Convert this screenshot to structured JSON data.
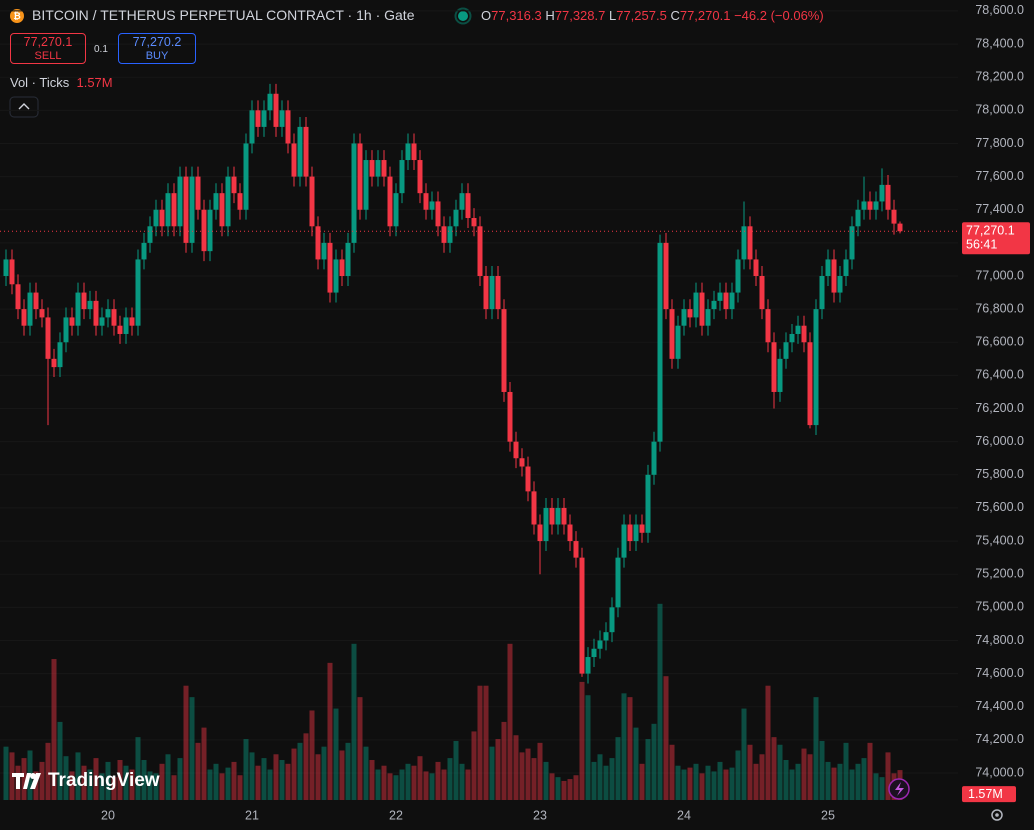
{
  "chart_data": {
    "type": "candlestick",
    "title": "BITCOIN / TETHERUS PERPETUAL CONTRACT · 1h · Gate",
    "legend_values": [
      {
        "key": "O",
        "value": "77,316.3"
      },
      {
        "key": "H",
        "value": "77,328.7"
      },
      {
        "key": "L",
        "value": "77,257.5"
      },
      {
        "key": "C",
        "value": "77,270.1"
      }
    ],
    "change": "−46.2 (−0.06%)",
    "sell": {
      "price": "77,270.1",
      "label": "SELL"
    },
    "spread": "0.1",
    "buy": {
      "price": "77,270.2",
      "label": "BUY"
    },
    "volume_indicator": {
      "name": "Vol · Ticks",
      "value": "1.57M"
    },
    "brand": "TradingView",
    "last_price": {
      "value": 77270.1,
      "label": "77,270.1"
    },
    "countdown": "56:41",
    "volume_label": "1.57M",
    "up_color": "#089981",
    "down_color": "#f23645",
    "grid": true,
    "categories": [
      null,
      null,
      null,
      null,
      null,
      null,
      null,
      null,
      null,
      null,
      null,
      null,
      null,
      null,
      null,
      null,
      null,
      "20",
      null,
      null,
      null,
      null,
      null,
      null,
      null,
      null,
      null,
      null,
      null,
      null,
      null,
      null,
      null,
      null,
      null,
      null,
      null,
      null,
      null,
      null,
      null,
      "21",
      null,
      null,
      null,
      null,
      null,
      null,
      null,
      null,
      null,
      null,
      null,
      null,
      null,
      null,
      null,
      null,
      null,
      null,
      null,
      null,
      null,
      null,
      null,
      "22",
      null,
      null,
      null,
      null,
      null,
      null,
      null,
      null,
      null,
      null,
      null,
      null,
      null,
      null,
      null,
      null,
      null,
      null,
      null,
      null,
      null,
      null,
      null,
      "23",
      null,
      null,
      null,
      null,
      null,
      null,
      null,
      null,
      null,
      null,
      null,
      null,
      null,
      null,
      null,
      null,
      null,
      null,
      null,
      null,
      null,
      null,
      null,
      "24",
      null,
      null,
      null,
      null,
      null,
      null,
      null,
      null,
      null,
      null,
      null,
      null,
      null,
      null,
      null,
      null,
      null,
      null,
      null,
      null,
      null,
      null,
      null,
      "25",
      null,
      null,
      null,
      null,
      null,
      null,
      null,
      null,
      null,
      null,
      null,
      null
    ],
    "open": [
      77000,
      77100,
      76950,
      76800,
      76700,
      76900,
      76800,
      76750,
      76500,
      76450,
      76600,
      76750,
      76700,
      76900,
      76800,
      76850,
      76700,
      76750,
      76800,
      76700,
      76650,
      76750,
      76700,
      77100,
      77200,
      77300,
      77400,
      77300,
      77500,
      77300,
      77600,
      77200,
      77600,
      77400,
      77150,
      77400,
      77500,
      77300,
      77600,
      77500,
      77400,
      77800,
      78000,
      77900,
      78000,
      78100,
      77900,
      78000,
      77800,
      77600,
      77900,
      77600,
      77300,
      77100,
      77200,
      76900,
      77100,
      77000,
      77200,
      77800,
      77400,
      77700,
      77600,
      77700,
      77600,
      77300,
      77500,
      77700,
      77800,
      77700,
      77500,
      77400,
      77450,
      77300,
      77200,
      77300,
      77400,
      77500,
      77350,
      77300,
      77000,
      76800,
      77000,
      76800,
      76300,
      76000,
      75900,
      75850,
      75700,
      75500,
      75400,
      75600,
      75500,
      75600,
      75500,
      75400,
      75300,
      74600,
      74700,
      74750,
      74800,
      74850,
      75000,
      75300,
      75500,
      75400,
      75500,
      75450,
      75800,
      76000,
      77200,
      76800,
      76500,
      76700,
      76800,
      76750,
      76900,
      76700,
      76800,
      76850,
      76900,
      76800,
      76900,
      77100,
      77300,
      77100,
      77000,
      76800,
      76600,
      76300,
      76500,
      76600,
      76650,
      76700,
      76600,
      76100,
      76800,
      77000,
      77100,
      76900,
      77000,
      77100,
      77300,
      77400,
      77450,
      77400,
      77450,
      77550,
      77400,
      77316.3
    ],
    "high": [
      77160,
      77160,
      77010,
      76860,
      76960,
      76960,
      76860,
      76810,
      76560,
      76660,
      76810,
      76810,
      76960,
      76960,
      76910,
      76910,
      76810,
      76860,
      76860,
      76760,
      76810,
      76810,
      77160,
      77260,
      77360,
      77460,
      77460,
      77560,
      77560,
      77660,
      77660,
      77660,
      77660,
      77460,
      77460,
      77560,
      77560,
      77660,
      77660,
      77560,
      77860,
      78060,
      78060,
      78060,
      78160,
      78160,
      78060,
      78060,
      77860,
      77960,
      77960,
      77660,
      77360,
      77260,
      77260,
      77160,
      77160,
      77260,
      77860,
      77860,
      77760,
      77760,
      77760,
      77760,
      77660,
      77560,
      77760,
      77860,
      77860,
      77760,
      77560,
      77510,
      77510,
      77360,
      77360,
      77460,
      77560,
      77560,
      77410,
      77360,
      77060,
      77060,
      77060,
      76860,
      76360,
      76060,
      75960,
      75910,
      75760,
      75560,
      75660,
      75660,
      75660,
      75660,
      75560,
      75460,
      75360,
      74760,
      74810,
      74860,
      74910,
      75060,
      75360,
      75560,
      75560,
      75560,
      75560,
      75860,
      76060,
      77250,
      77260,
      76860,
      76760,
      76860,
      76860,
      76960,
      76960,
      76860,
      76910,
      76960,
      76960,
      76960,
      77160,
      77450,
      77360,
      77160,
      77060,
      76860,
      76660,
      76560,
      76660,
      76710,
      76760,
      76760,
      76660,
      76860,
      77060,
      77160,
      77160,
      77060,
      77160,
      77360,
      77460,
      77600,
      77510,
      77510,
      77650,
      77610,
      77460,
      77328.7
    ],
    "low": [
      76940,
      76890,
      76740,
      76640,
      76640,
      76740,
      76690,
      76100,
      76390,
      76390,
      76540,
      76640,
      76640,
      76740,
      76740,
      76640,
      76640,
      76690,
      76640,
      76590,
      76590,
      76640,
      76640,
      77040,
      77140,
      77240,
      77240,
      77240,
      77240,
      77240,
      77140,
      77140,
      77340,
      77090,
      77090,
      77340,
      77240,
      77240,
      77440,
      77340,
      77340,
      77740,
      77840,
      77840,
      77940,
      77840,
      77840,
      77740,
      77540,
      77540,
      77540,
      77240,
      77040,
      77040,
      76840,
      76840,
      76940,
      76940,
      77140,
      77340,
      77340,
      77540,
      77540,
      77540,
      77240,
      77240,
      77440,
      77640,
      77640,
      77440,
      77340,
      77340,
      77240,
      77140,
      77140,
      77240,
      77340,
      77290,
      77240,
      76940,
      76740,
      76740,
      76740,
      76240,
      75940,
      75840,
      75790,
      75640,
      75440,
      75200,
      75340,
      75440,
      75440,
      75440,
      75340,
      75240,
      74580,
      74540,
      74640,
      74690,
      74740,
      74790,
      74940,
      75240,
      75340,
      75340,
      75390,
      75390,
      75740,
      75940,
      76740,
      76440,
      76440,
      76640,
      76690,
      76690,
      76640,
      76640,
      76740,
      76790,
      76740,
      76740,
      76840,
      77040,
      77040,
      76940,
      76740,
      76540,
      76200,
      76240,
      76440,
      76540,
      76590,
      76540,
      76080,
      76040,
      76740,
      76940,
      76840,
      76840,
      76940,
      77040,
      77240,
      77340,
      77340,
      77340,
      77390,
      77340,
      77250,
      77257.5
    ],
    "close": [
      77100,
      76950,
      76800,
      76700,
      76900,
      76800,
      76750,
      76500,
      76450,
      76600,
      76750,
      76700,
      76900,
      76800,
      76850,
      76700,
      76750,
      76800,
      76700,
      76650,
      76750,
      76700,
      77100,
      77200,
      77300,
      77400,
      77300,
      77500,
      77300,
      77600,
      77200,
      77600,
      77400,
      77150,
      77400,
      77500,
      77300,
      77600,
      77500,
      77400,
      77800,
      78000,
      77900,
      78000,
      78100,
      77900,
      78000,
      77800,
      77600,
      77900,
      77600,
      77300,
      77100,
      77200,
      76900,
      77100,
      77000,
      77200,
      77800,
      77400,
      77700,
      77600,
      77700,
      77600,
      77300,
      77500,
      77700,
      77800,
      77700,
      77500,
      77400,
      77450,
      77300,
      77200,
      77300,
      77400,
      77500,
      77350,
      77300,
      77000,
      76800,
      77000,
      76800,
      76300,
      76000,
      75900,
      75850,
      75700,
      75500,
      75400,
      75600,
      75500,
      75600,
      75500,
      75400,
      75300,
      74600,
      74700,
      74750,
      74800,
      74850,
      75000,
      75300,
      75500,
      75400,
      75500,
      75450,
      75800,
      76000,
      77200,
      76800,
      76500,
      76700,
      76800,
      76750,
      76900,
      76700,
      76800,
      76850,
      76900,
      76800,
      76900,
      77100,
      77300,
      77100,
      77000,
      76800,
      76600,
      76300,
      76500,
      76600,
      76650,
      76700,
      76600,
      76100,
      76800,
      77000,
      77100,
      76900,
      77000,
      77100,
      77300,
      77400,
      77450,
      77400,
      77450,
      77550,
      77400,
      77316.3,
      77270.1
    ],
    "volume": [
      2.8,
      2.5,
      1.8,
      2.2,
      2.6,
      1.5,
      2.0,
      3.0,
      7.4,
      4.1,
      2.3,
      1.5,
      2.5,
      1.8,
      1.6,
      2.2,
      1.4,
      2.0,
      1.2,
      2.1,
      1.8,
      1.6,
      3.3,
      2.1,
      1.5,
      1.4,
      1.9,
      2.4,
      1.3,
      2.2,
      6.0,
      5.4,
      3.0,
      3.8,
      1.6,
      1.9,
      1.4,
      1.7,
      2.0,
      1.3,
      3.2,
      2.5,
      1.8,
      2.2,
      1.6,
      2.4,
      2.1,
      1.9,
      2.7,
      3.0,
      3.5,
      4.7,
      2.4,
      2.8,
      7.2,
      4.8,
      2.6,
      3.0,
      8.2,
      5.4,
      2.8,
      2.1,
      1.6,
      1.8,
      1.4,
      1.3,
      1.6,
      1.9,
      1.8,
      2.3,
      1.5,
      1.4,
      2.0,
      1.6,
      2.2,
      3.1,
      1.9,
      1.6,
      3.6,
      6.0,
      6.0,
      2.8,
      3.2,
      4.1,
      8.2,
      3.4,
      2.5,
      2.7,
      2.2,
      3.0,
      2.0,
      1.4,
      1.2,
      1.0,
      1.1,
      1.3,
      6.2,
      5.5,
      2.0,
      2.4,
      1.8,
      2.2,
      3.3,
      5.6,
      5.4,
      3.8,
      1.9,
      3.2,
      4.0,
      10.3,
      6.5,
      2.9,
      1.8,
      1.6,
      1.7,
      1.9,
      1.4,
      1.8,
      1.5,
      2.0,
      1.6,
      1.7,
      2.6,
      4.8,
      2.9,
      1.9,
      2.4,
      6.0,
      3.3,
      2.9,
      2.1,
      1.6,
      1.9,
      2.7,
      2.4,
      5.4,
      3.1,
      2.0,
      1.7,
      1.9,
      3.0,
      1.6,
      1.9,
      2.2,
      3.0,
      1.4,
      1.2,
      2.5,
      1.4,
      1.57
    ],
    "volume_lim": [
      0,
      10.5
    ],
    "ylim": [
      73837,
      78666
    ],
    "yticks": [
      {
        "value": 74000,
        "label": "74,000.0"
      },
      {
        "value": 74200,
        "label": "74,200.0"
      },
      {
        "value": 74400,
        "label": "74,400.0"
      },
      {
        "value": 74600,
        "label": "74,600.0"
      },
      {
        "value": 74800,
        "label": "74,800.0"
      },
      {
        "value": 75000,
        "label": "75,000.0"
      },
      {
        "value": 75200,
        "label": "75,200.0"
      },
      {
        "value": 75400,
        "label": "75,400.0"
      },
      {
        "value": 75600,
        "label": "75,600.0"
      },
      {
        "value": 75800,
        "label": "75,800.0"
      },
      {
        "value": 76000,
        "label": "76,000.0"
      },
      {
        "value": 76200,
        "label": "76,200.0"
      },
      {
        "value": 76400,
        "label": "76,400.0"
      },
      {
        "value": 76600,
        "label": "76,600.0"
      },
      {
        "value": 76800,
        "label": "76,800.0"
      },
      {
        "value": 77000,
        "label": "77,000.0"
      },
      {
        "value": 77200,
        "label": "77,200.0"
      },
      {
        "value": 77400,
        "label": "77,400.0"
      },
      {
        "value": 77600,
        "label": "77,600.0"
      },
      {
        "value": 77800,
        "label": "77,800.0"
      },
      {
        "value": 78000,
        "label": "78,000.0"
      },
      {
        "value": 78200,
        "label": "78,200.0"
      },
      {
        "value": 78400,
        "label": "78,400.0"
      },
      {
        "value": 78600,
        "label": "78,600.0"
      }
    ]
  }
}
